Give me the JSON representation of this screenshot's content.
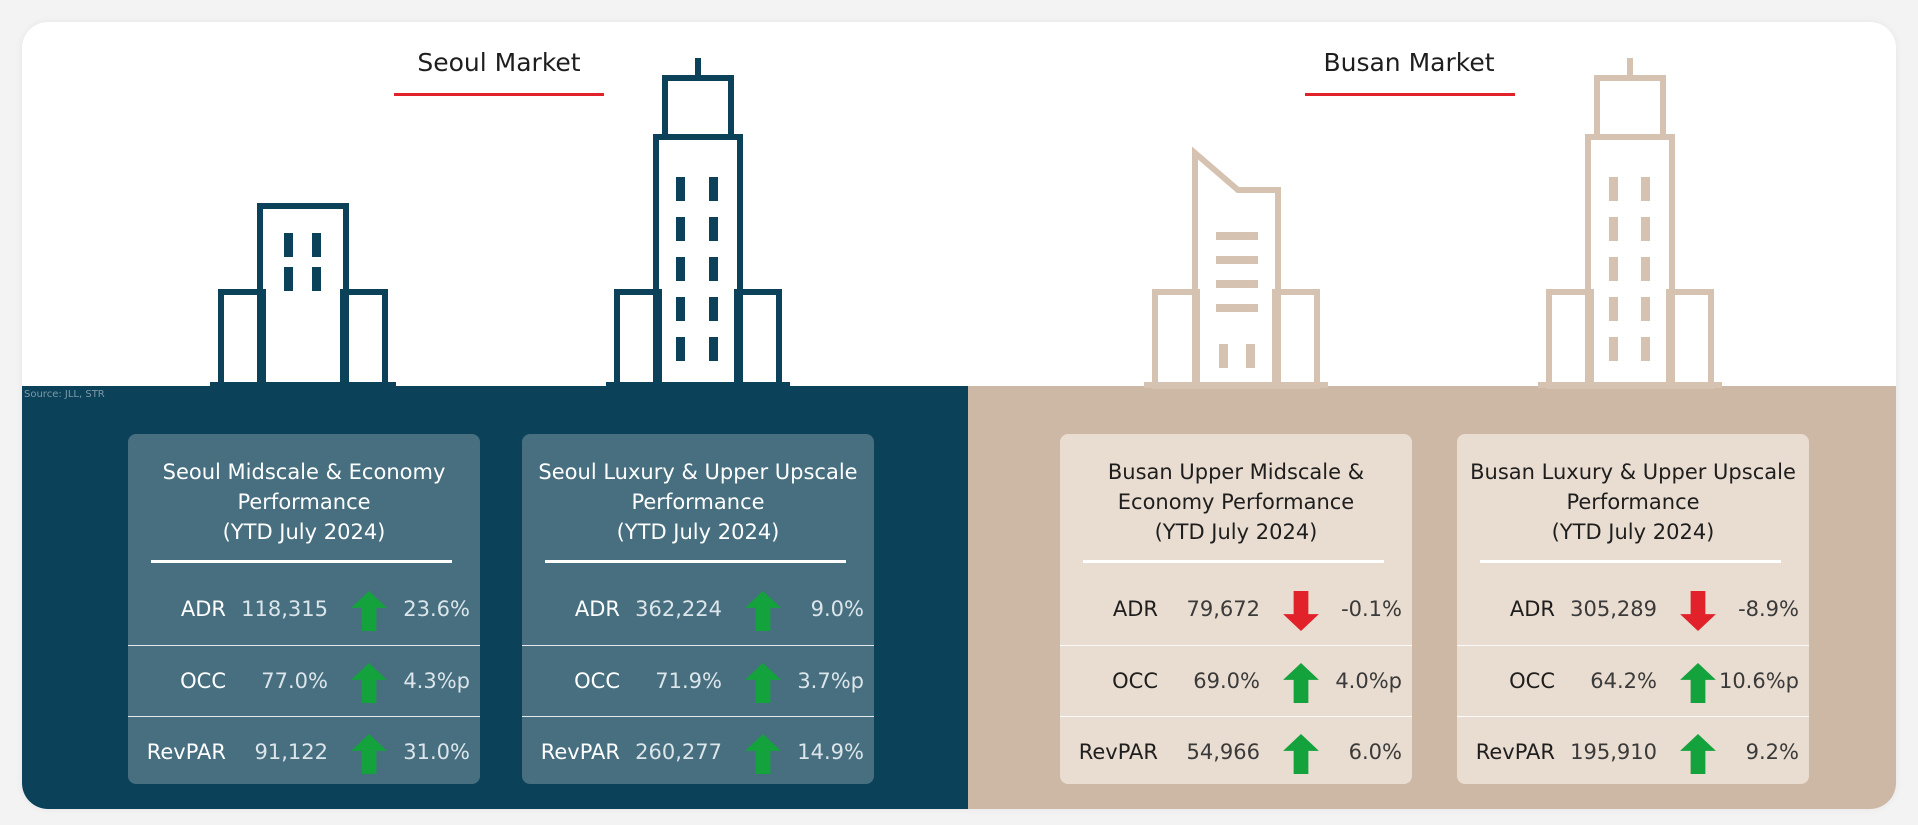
{
  "source": "Source: JLL, STR",
  "colors": {
    "seoul_dark": "#0b4259",
    "seoul_card": "#476f80",
    "busan_tan": "#cdb8a6",
    "busan_card": "#e9dcd0",
    "busan_building": "#d6c2b1",
    "accent_red": "#e2222b",
    "up_green": "#14a23c",
    "down_red": "#e2222b"
  },
  "seoul": {
    "title": "Seoul Market",
    "cards": [
      {
        "title_lines": [
          "Seoul Midscale & Economy",
          "Performance",
          "(YTD July 2024)"
        ],
        "rows": [
          {
            "label": "ADR",
            "value": "118,315",
            "change": "23.6%",
            "direction": "up"
          },
          {
            "label": "OCC",
            "value": "77.0%",
            "change": "4.3%p",
            "direction": "up"
          },
          {
            "label": "RevPAR",
            "value": "91,122",
            "change": "31.0%",
            "direction": "up"
          }
        ]
      },
      {
        "title_lines": [
          "Seoul Luxury & Upper Upscale",
          "Performance",
          "(YTD July 2024)"
        ],
        "rows": [
          {
            "label": "ADR",
            "value": "362,224",
            "change": "9.0%",
            "direction": "up"
          },
          {
            "label": "OCC",
            "value": "71.9%",
            "change": "3.7%p",
            "direction": "up"
          },
          {
            "label": "RevPAR",
            "value": "260,277",
            "change": "14.9%",
            "direction": "up"
          }
        ]
      }
    ]
  },
  "busan": {
    "title": "Busan Market",
    "cards": [
      {
        "title_lines": [
          "Busan Upper Midscale &",
          "Economy Performance",
          "(YTD July 2024)"
        ],
        "rows": [
          {
            "label": "ADR",
            "value": "79,672",
            "change": "-0.1%",
            "direction": "down"
          },
          {
            "label": "OCC",
            "value": "69.0%",
            "change": "4.0%p",
            "direction": "up"
          },
          {
            "label": "RevPAR",
            "value": "54,966",
            "change": "6.0%",
            "direction": "up"
          }
        ]
      },
      {
        "title_lines": [
          "Busan Luxury & Upper Upscale",
          "Performance",
          "(YTD July 2024)"
        ],
        "rows": [
          {
            "label": "ADR",
            "value": "305,289",
            "change": "-8.9%",
            "direction": "down"
          },
          {
            "label": "OCC",
            "value": "64.2%",
            "change": "10.6%p",
            "direction": "up"
          },
          {
            "label": "RevPAR",
            "value": "195,910",
            "change": "9.2%",
            "direction": "up"
          }
        ]
      }
    ]
  }
}
